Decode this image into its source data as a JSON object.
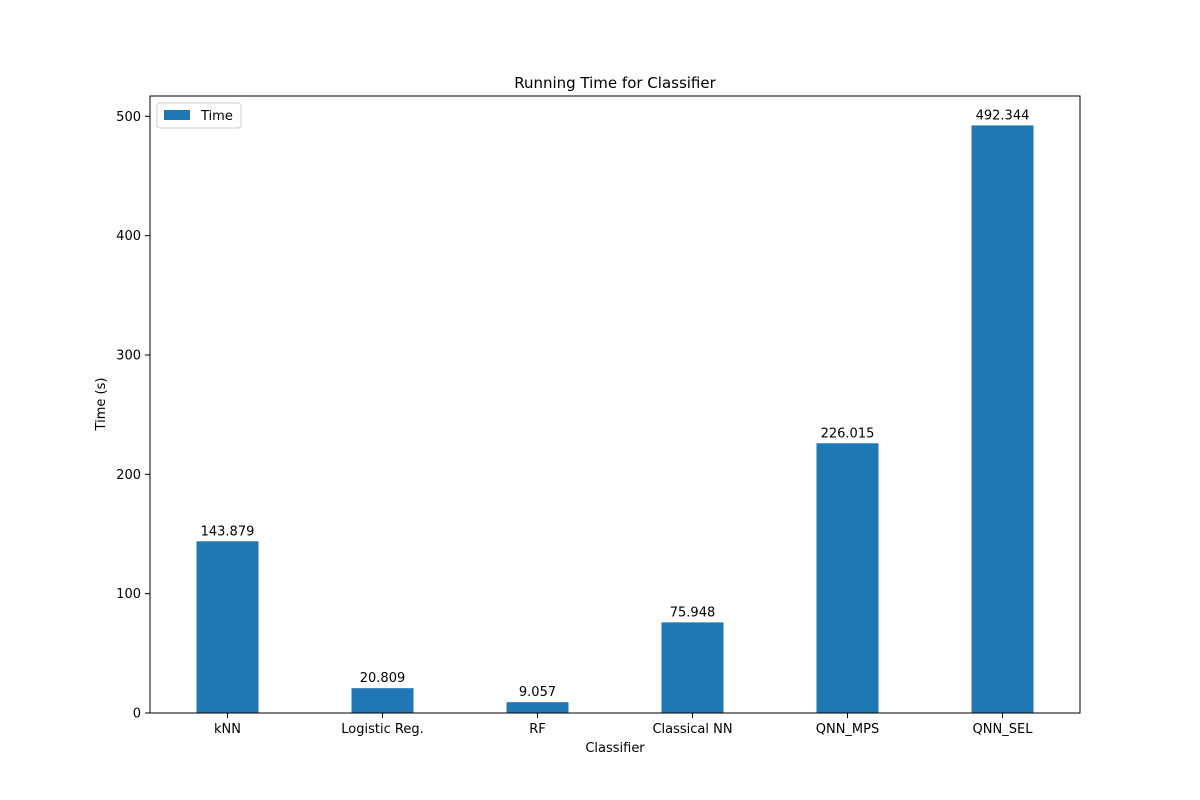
{
  "chart_data": {
    "type": "bar",
    "title": "Running Time for Classifier",
    "xlabel": "Classifier",
    "ylabel": "Time (s)",
    "categories": [
      "kNN",
      "Logistic Reg.",
      "RF",
      "Classical NN",
      "QNN_MPS",
      "QNN_SEL"
    ],
    "series": [
      {
        "name": "Time",
        "color": "#1f77b4",
        "values": [
          143.879,
          20.809,
          9.057,
          75.948,
          226.015,
          492.344
        ],
        "labels": [
          "143.879",
          "20.809",
          "9.057",
          "75.948",
          "226.015",
          "492.344"
        ]
      }
    ],
    "ylim": [
      0,
      517
    ],
    "yticks": [
      0,
      100,
      200,
      300,
      400,
      500
    ],
    "ytick_labels": [
      "0",
      "100",
      "200",
      "300",
      "400",
      "500"
    ],
    "grid": false,
    "legend": "top-left"
  }
}
